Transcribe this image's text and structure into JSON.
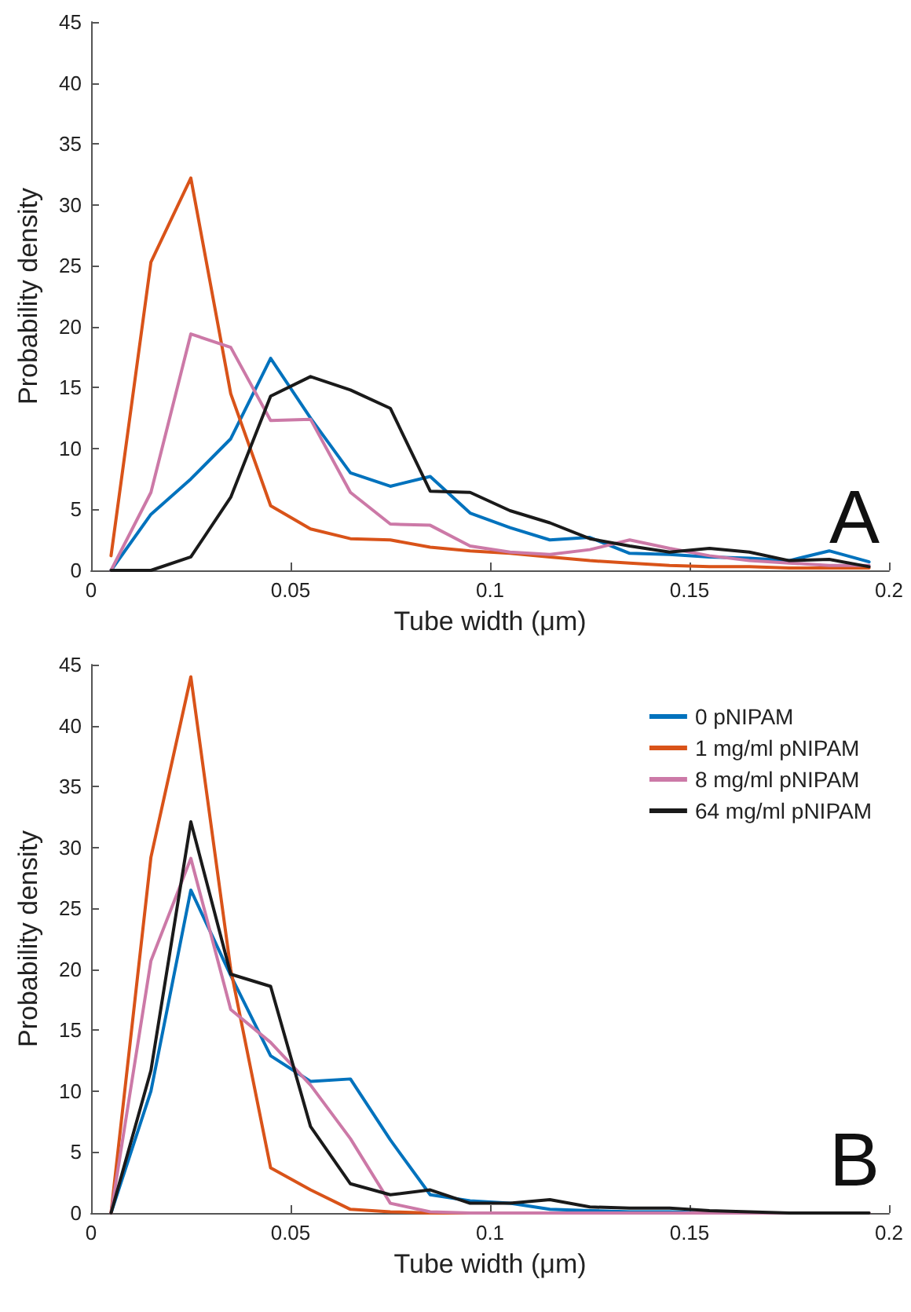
{
  "chart_data": [
    {
      "type": "line",
      "xlabel": "Tube width (μm)",
      "ylabel": "Probability density",
      "annotations": [
        "A"
      ],
      "x": [
        0.005,
        0.015,
        0.025,
        0.035,
        0.045,
        0.055,
        0.065,
        0.075,
        0.085,
        0.095,
        0.105,
        0.115,
        0.125,
        0.135,
        0.145,
        0.155,
        0.165,
        0.175,
        0.185,
        0.195
      ],
      "xlim": [
        0,
        0.2
      ],
      "xticks": [
        0,
        0.05,
        0.1,
        0.15,
        0.2
      ],
      "ylim": [
        0,
        45
      ],
      "yticks": [
        0,
        5,
        10,
        15,
        20,
        25,
        30,
        35,
        40,
        45
      ],
      "grid": false,
      "legend": false,
      "series": [
        {
          "color": "#0072bd",
          "values": [
            0,
            4.6,
            7.5,
            10.8,
            17.4,
            12.5,
            8,
            6.9,
            7.7,
            4.7,
            3.5,
            2.5,
            2.7,
            1.4,
            1.3,
            1.1,
            1.0,
            0.8,
            1.6,
            0.7
          ]
        },
        {
          "color": "#d95319",
          "values": [
            1.2,
            25.3,
            32.2,
            14.5,
            5.3,
            3.4,
            2.6,
            2.5,
            1.9,
            1.6,
            1.4,
            1.1,
            0.8,
            0.6,
            0.4,
            0.3,
            0.3,
            0.2,
            0.2,
            0.2
          ]
        },
        {
          "color": "#cc79a7",
          "values": [
            0,
            6.4,
            19.4,
            18.3,
            12.3,
            12.4,
            6.4,
            3.8,
            3.7,
            2.0,
            1.5,
            1.3,
            1.7,
            2.5,
            1.8,
            1.2,
            0.8,
            0.6,
            0.4,
            0.4
          ]
        },
        {
          "color": "#1a1a1a",
          "values": [
            0,
            0,
            1.1,
            6,
            14.3,
            15.9,
            14.8,
            13.3,
            6.5,
            6.4,
            4.9,
            3.9,
            2.6,
            2.0,
            1.5,
            1.8,
            1.5,
            0.8,
            0.9,
            0.3
          ]
        }
      ]
    },
    {
      "type": "line",
      "xlabel": "Tube width (μm)",
      "ylabel": "Probability density",
      "annotations": [
        "B"
      ],
      "x": [
        0.005,
        0.015,
        0.025,
        0.035,
        0.045,
        0.055,
        0.065,
        0.075,
        0.085,
        0.095,
        0.105,
        0.115,
        0.125,
        0.135,
        0.145,
        0.155,
        0.165,
        0.175,
        0.185,
        0.195
      ],
      "xlim": [
        0,
        0.2
      ],
      "xticks": [
        0,
        0.05,
        0.1,
        0.15,
        0.2
      ],
      "ylim": [
        0,
        45
      ],
      "yticks": [
        0,
        5,
        10,
        15,
        20,
        25,
        30,
        35,
        40,
        45
      ],
      "grid": false,
      "legend": "top right",
      "series": [
        {
          "name": "0 pNIPAM",
          "color": "#0072bd",
          "values": [
            0,
            10,
            26.5,
            19.5,
            12.9,
            10.8,
            11,
            6,
            1.5,
            1,
            0.8,
            0.3,
            0.2,
            0.1,
            0.1,
            0,
            0,
            null,
            null,
            null
          ]
        },
        {
          "name": "1 mg/ml pNIPAM",
          "color": "#d95319",
          "values": [
            0,
            29.2,
            44,
            20,
            3.7,
            1.9,
            0.3,
            0.1,
            0,
            0,
            0,
            null,
            null,
            null,
            null,
            null,
            null,
            null,
            null,
            null
          ]
        },
        {
          "name": "8 mg/ml pNIPAM",
          "color": "#cc79a7",
          "values": [
            0,
            20.7,
            29.1,
            16.7,
            14,
            10.5,
            6.1,
            0.8,
            0.1,
            0,
            0,
            0,
            0,
            0,
            0,
            0,
            0,
            0,
            0,
            0
          ]
        },
        {
          "name": "64 mg/ml pNIPAM",
          "color": "#1a1a1a",
          "values": [
            0,
            11.7,
            32.1,
            19.6,
            18.6,
            7.1,
            2.4,
            1.5,
            1.9,
            0.8,
            0.8,
            1.1,
            0.5,
            0.4,
            0.4,
            0.2,
            0.1,
            0,
            0,
            0
          ]
        }
      ]
    }
  ]
}
